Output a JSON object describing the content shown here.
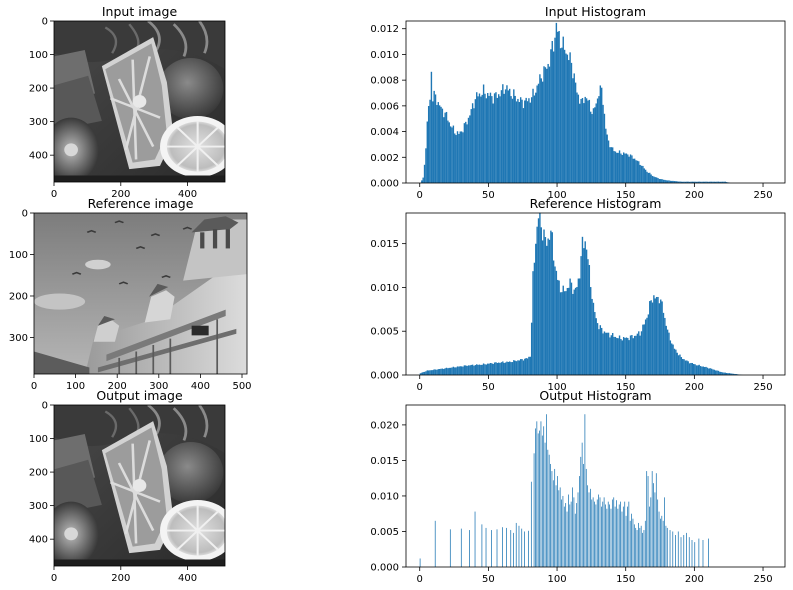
{
  "panels": [
    {
      "kind": "image",
      "title": "Input image",
      "scene": "fruit",
      "xticks": [
        "0",
        "200",
        "400"
      ],
      "yticks": [
        "0",
        "100",
        "200",
        "300",
        "400"
      ]
    },
    {
      "kind": "image",
      "title": "Reference image",
      "scene": "building",
      "xticks": [
        "0",
        "100",
        "200",
        "300",
        "400",
        "500"
      ],
      "yticks": [
        "0",
        "100",
        "200",
        "300"
      ]
    },
    {
      "kind": "image",
      "title": "Output image",
      "scene": "fruit",
      "xticks": [
        "0",
        "200",
        "400"
      ],
      "yticks": [
        "0",
        "100",
        "200",
        "300",
        "400"
      ]
    }
  ],
  "chart_data": [
    {
      "type": "bar",
      "title": "Input Histogram",
      "xlabel": "",
      "ylabel": "",
      "xlim": [
        -10,
        266
      ],
      "ylim": [
        0,
        0.0126
      ],
      "xticks": [
        0,
        50,
        100,
        150,
        200,
        250
      ],
      "yticks": [
        0.0,
        0.002,
        0.004,
        0.006,
        0.008,
        0.01,
        0.012
      ],
      "ytick_labels": [
        "0.000",
        "0.002",
        "0.004",
        "0.006",
        "0.008",
        "0.010",
        "0.012"
      ],
      "color": "#1f77b4",
      "profile": {
        "mode": "continuous",
        "points": [
          [
            0,
            0
          ],
          [
            2,
            0.0004
          ],
          [
            3,
            0.0015
          ],
          [
            4,
            0.0028
          ],
          [
            5,
            0.0045
          ],
          [
            6,
            0.006
          ],
          [
            7,
            0.0065
          ],
          [
            8,
            0.0088
          ],
          [
            9,
            0.0066
          ],
          [
            11,
            0.0068
          ],
          [
            13,
            0.0062
          ],
          [
            15,
            0.0058
          ],
          [
            18,
            0.0054
          ],
          [
            20,
            0.005
          ],
          [
            22,
            0.0045
          ],
          [
            25,
            0.004
          ],
          [
            28,
            0.0038
          ],
          [
            31,
            0.0042
          ],
          [
            34,
            0.0048
          ],
          [
            37,
            0.0056
          ],
          [
            40,
            0.0066
          ],
          [
            43,
            0.0069
          ],
          [
            46,
            0.0071
          ],
          [
            50,
            0.0068
          ],
          [
            53,
            0.0067
          ],
          [
            56,
            0.0068
          ],
          [
            60,
            0.0072
          ],
          [
            62,
            0.0075
          ],
          [
            64,
            0.0072
          ],
          [
            67,
            0.0069
          ],
          [
            70,
            0.0066
          ],
          [
            74,
            0.0063
          ],
          [
            78,
            0.0064
          ],
          [
            82,
            0.0068
          ],
          [
            85,
            0.0075
          ],
          [
            88,
            0.0083
          ],
          [
            91,
            0.0088
          ],
          [
            94,
            0.0095
          ],
          [
            96,
            0.0105
          ],
          [
            98,
            0.0114
          ],
          [
            99,
            0.0122
          ],
          [
            100,
            0.0117
          ],
          [
            102,
            0.0111
          ],
          [
            104,
            0.0106
          ],
          [
            106,
            0.0103
          ],
          [
            108,
            0.0098
          ],
          [
            110,
            0.0093
          ],
          [
            112,
            0.0083
          ],
          [
            114,
            0.007
          ],
          [
            116,
            0.0066
          ],
          [
            118,
            0.0062
          ],
          [
            120,
            0.0068
          ],
          [
            122,
            0.0064
          ],
          [
            124,
            0.0058
          ],
          [
            126,
            0.0055
          ],
          [
            128,
            0.0062
          ],
          [
            130,
            0.0071
          ],
          [
            132,
            0.0072
          ],
          [
            133,
            0.0065
          ],
          [
            135,
            0.0042
          ],
          [
            137,
            0.0032
          ],
          [
            140,
            0.0026
          ],
          [
            143,
            0.0024
          ],
          [
            148,
            0.0023
          ],
          [
            152,
            0.0022
          ],
          [
            156,
            0.0019
          ],
          [
            160,
            0.0015
          ],
          [
            165,
            0.0009
          ],
          [
            170,
            0.0005
          ],
          [
            175,
            0.0003
          ],
          [
            180,
            0.0002
          ],
          [
            190,
            0.0001
          ],
          [
            210,
            0.0001
          ],
          [
            222,
            0.0001
          ],
          [
            226,
            0
          ]
        ]
      }
    },
    {
      "type": "bar",
      "title": "Reference  Histogram",
      "xlabel": "",
      "ylabel": "",
      "xlim": [
        -10,
        266
      ],
      "ylim": [
        0,
        0.0185
      ],
      "xticks": [
        0,
        50,
        100,
        150,
        200,
        250
      ],
      "yticks": [
        0.0,
        0.005,
        0.01,
        0.015
      ],
      "ytick_labels": [
        "0.000",
        "0.005",
        "0.010",
        "0.015"
      ],
      "color": "#1f77b4",
      "profile": {
        "mode": "continuous",
        "points": [
          [
            0,
            0.0002
          ],
          [
            5,
            0.0005
          ],
          [
            15,
            0.0007
          ],
          [
            25,
            0.0009
          ],
          [
            35,
            0.0011
          ],
          [
            45,
            0.0012
          ],
          [
            55,
            0.0014
          ],
          [
            65,
            0.0015
          ],
          [
            72,
            0.0017
          ],
          [
            78,
            0.0019
          ],
          [
            80,
            0.0022
          ],
          [
            81,
            0.006
          ],
          [
            82,
            0.011
          ],
          [
            84,
            0.0155
          ],
          [
            86,
            0.018
          ],
          [
            88,
            0.0172
          ],
          [
            90,
            0.0158
          ],
          [
            92,
            0.015
          ],
          [
            94,
            0.0162
          ],
          [
            96,
            0.0155
          ],
          [
            98,
            0.0125
          ],
          [
            100,
            0.0108
          ],
          [
            102,
            0.01
          ],
          [
            104,
            0.0095
          ],
          [
            106,
            0.0098
          ],
          [
            108,
            0.0102
          ],
          [
            110,
            0.0105
          ],
          [
            112,
            0.0095
          ],
          [
            114,
            0.01
          ],
          [
            116,
            0.0118
          ],
          [
            118,
            0.0148
          ],
          [
            120,
            0.0155
          ],
          [
            122,
            0.0132
          ],
          [
            124,
            0.0105
          ],
          [
            126,
            0.0078
          ],
          [
            128,
            0.0065
          ],
          [
            130,
            0.0055
          ],
          [
            135,
            0.0048
          ],
          [
            140,
            0.0045
          ],
          [
            145,
            0.0042
          ],
          [
            150,
            0.0042
          ],
          [
            155,
            0.0044
          ],
          [
            160,
            0.0048
          ],
          [
            163,
            0.0058
          ],
          [
            166,
            0.0072
          ],
          [
            168,
            0.0085
          ],
          [
            170,
            0.009
          ],
          [
            172,
            0.0086
          ],
          [
            174,
            0.0089
          ],
          [
            176,
            0.008
          ],
          [
            178,
            0.0065
          ],
          [
            181,
            0.0045
          ],
          [
            185,
            0.003
          ],
          [
            190,
            0.002
          ],
          [
            195,
            0.0015
          ],
          [
            200,
            0.0012
          ],
          [
            210,
            0.0008
          ],
          [
            220,
            0.0003
          ],
          [
            230,
            0.0001
          ],
          [
            235,
            0
          ]
        ]
      }
    },
    {
      "type": "bar",
      "title": "Output Histogram",
      "xlabel": "",
      "ylabel": "",
      "xlim": [
        -10,
        266
      ],
      "ylim": [
        0,
        0.0228
      ],
      "xticks": [
        0,
        50,
        100,
        150,
        200,
        250
      ],
      "yticks": [
        0.0,
        0.005,
        0.01,
        0.015,
        0.02
      ],
      "ytick_labels": [
        "0.000",
        "0.005",
        "0.010",
        "0.015",
        "0.020"
      ],
      "color": "#1f77b4",
      "profile": {
        "mode": "sparse",
        "bars": [
          [
            0,
            0.0012
          ],
          [
            11,
            0.0065
          ],
          [
            22,
            0.0053
          ],
          [
            30,
            0.0054
          ],
          [
            36,
            0.0052
          ],
          [
            40,
            0.0078
          ],
          [
            45,
            0.006
          ],
          [
            48,
            0.0055
          ],
          [
            52,
            0.0052
          ],
          [
            56,
            0.0053
          ],
          [
            60,
            0.0056
          ],
          [
            63,
            0.0055
          ],
          [
            66,
            0.0052
          ],
          [
            68,
            0.0048
          ],
          [
            70,
            0.0062
          ],
          [
            72,
            0.0058
          ],
          [
            74,
            0.0054
          ],
          [
            76,
            0.005
          ],
          [
            79,
            0.0051
          ],
          [
            81,
            0.012
          ],
          [
            83,
            0.016
          ],
          [
            84,
            0.0195
          ],
          [
            85,
            0.0205
          ],
          [
            86,
            0.0188
          ],
          [
            87,
            0.0192
          ],
          [
            88,
            0.0205
          ],
          [
            89,
            0.0185
          ],
          [
            90,
            0.0198
          ],
          [
            91,
            0.0175
          ],
          [
            92,
            0.0215
          ],
          [
            93,
            0.0165
          ],
          [
            94,
            0.0158
          ],
          [
            95,
            0.0145
          ],
          [
            96,
            0.0135
          ],
          [
            97,
            0.0122
          ],
          [
            98,
            0.0138
          ],
          [
            99,
            0.0115
          ],
          [
            100,
            0.0128
          ],
          [
            101,
            0.0108
          ],
          [
            102,
            0.0112
          ],
          [
            103,
            0.0095
          ],
          [
            104,
            0.01
          ],
          [
            105,
            0.0085
          ],
          [
            106,
            0.009
          ],
          [
            107,
            0.0078
          ],
          [
            108,
            0.0102
          ],
          [
            109,
            0.0088
          ],
          [
            110,
            0.0092
          ],
          [
            111,
            0.0112
          ],
          [
            112,
            0.0098
          ],
          [
            113,
            0.0075
          ],
          [
            114,
            0.009
          ],
          [
            115,
            0.0105
          ],
          [
            116,
            0.0128
          ],
          [
            117,
            0.0155
          ],
          [
            118,
            0.0175
          ],
          [
            119,
            0.0145
          ],
          [
            120,
            0.0215
          ],
          [
            121,
            0.0138
          ],
          [
            122,
            0.0115
          ],
          [
            123,
            0.0105
          ],
          [
            124,
            0.011
          ],
          [
            125,
            0.0095
          ],
          [
            126,
            0.0098
          ],
          [
            127,
            0.0092
          ],
          [
            128,
            0.0088
          ],
          [
            129,
            0.0095
          ],
          [
            130,
            0.0102
          ],
          [
            131,
            0.0098
          ],
          [
            132,
            0.0085
          ],
          [
            133,
            0.0092
          ],
          [
            134,
            0.0098
          ],
          [
            135,
            0.0088
          ],
          [
            136,
            0.0082
          ],
          [
            137,
            0.0092
          ],
          [
            138,
            0.0088
          ],
          [
            139,
            0.0082
          ],
          [
            140,
            0.0095
          ],
          [
            141,
            0.0098
          ],
          [
            142,
            0.0085
          ],
          [
            143,
            0.0094
          ],
          [
            144,
            0.0082
          ],
          [
            145,
            0.0088
          ],
          [
            146,
            0.0092
          ],
          [
            147,
            0.0078
          ],
          [
            148,
            0.0085
          ],
          [
            149,
            0.0092
          ],
          [
            150,
            0.0072
          ],
          [
            151,
            0.0085
          ],
          [
            152,
            0.0092
          ],
          [
            153,
            0.0065
          ],
          [
            154,
            0.0075
          ],
          [
            155,
            0.0068
          ],
          [
            156,
            0.006
          ],
          [
            157,
            0.0055
          ],
          [
            158,
            0.0052
          ],
          [
            159,
            0.0062
          ],
          [
            160,
            0.0055
          ],
          [
            161,
            0.0058
          ],
          [
            162,
            0.0048
          ],
          [
            163,
            0.0052
          ],
          [
            164,
            0.0065
          ],
          [
            165,
            0.0135
          ],
          [
            166,
            0.0128
          ],
          [
            167,
            0.0085
          ],
          [
            168,
            0.0098
          ],
          [
            169,
            0.0135
          ],
          [
            170,
            0.0118
          ],
          [
            171,
            0.0105
          ],
          [
            172,
            0.0132
          ],
          [
            173,
            0.0095
          ],
          [
            174,
            0.0078
          ],
          [
            175,
            0.0068
          ],
          [
            176,
            0.0072
          ],
          [
            177,
            0.0065
          ],
          [
            178,
            0.0098
          ],
          [
            179,
            0.0058
          ],
          [
            180,
            0.0055
          ],
          [
            182,
            0.0052
          ],
          [
            184,
            0.005
          ],
          [
            186,
            0.0045
          ],
          [
            188,
            0.005
          ],
          [
            190,
            0.0042
          ],
          [
            192,
            0.0045
          ],
          [
            194,
            0.0048
          ],
          [
            196,
            0.0042
          ],
          [
            198,
            0.0038
          ],
          [
            200,
            0.0035
          ],
          [
            203,
            0.004
          ],
          [
            206,
            0.0038
          ],
          [
            210,
            0.004
          ]
        ]
      }
    }
  ]
}
